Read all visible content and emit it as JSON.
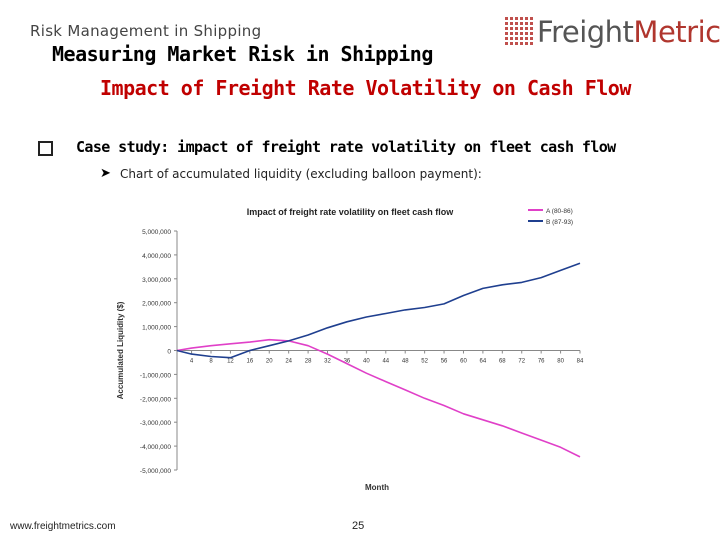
{
  "header": {
    "subtitle": "Risk Management in Shipping",
    "title": "Measuring Market Risk in Shipping",
    "subtitle2": "Impact of Freight Rate Volatility on Cash Flow"
  },
  "logo": {
    "part1": "Freight",
    "part2": "Metrics"
  },
  "case_study": {
    "bullet_text": "Case study: impact of freight rate volatility on fleet cash flow",
    "sub_bullet": "Chart of accumulated liquidity (excluding balloon payment):"
  },
  "icons": {
    "bullet": "square-bullet-icon",
    "arrow": "arrow-bullet-icon"
  },
  "footer": {
    "url": "www.freightmetrics.com",
    "page": "25"
  },
  "chart_data": {
    "type": "line",
    "title": "Impact of freight rate volatility on fleet cash flow",
    "xlabel": "Month",
    "ylabel": "Accumulated Liquidity ($)",
    "ylim": [
      -5000000,
      5000000
    ],
    "yticks": [
      5000000,
      4000000,
      3000000,
      2000000,
      1000000,
      0,
      -1000000,
      -2000000,
      -3000000,
      -4000000,
      -5000000
    ],
    "ytick_labels": [
      "5,000,000",
      "4,000,000",
      "3,000,000",
      "2,000,000",
      "1,000,000",
      "0",
      "-1,000,000",
      "-2,000,000",
      "-3,000,000",
      "-4,000,000",
      "-5,000,000"
    ],
    "x_ticks": [
      "4",
      "8",
      "12",
      "16",
      "20",
      "24",
      "28",
      "32",
      "36",
      "40",
      "44",
      "48",
      "52",
      "56",
      "60",
      "64",
      "68",
      "72",
      "76",
      "80",
      "84"
    ],
    "x_range": [
      1,
      84
    ],
    "grid": false,
    "legend": "top-right",
    "colors": {
      "A": "#e040c8",
      "B": "#1f3f8f"
    },
    "series": [
      {
        "name": "A (80-86)",
        "color": "#e040c8",
        "x": [
          1,
          4,
          8,
          12,
          16,
          20,
          24,
          28,
          32,
          36,
          40,
          44,
          48,
          52,
          56,
          60,
          64,
          68,
          72,
          76,
          80,
          84
        ],
        "values": [
          0,
          100000,
          200000,
          280000,
          350000,
          450000,
          400000,
          200000,
          -150000,
          -550000,
          -950000,
          -1300000,
          -1650000,
          -2000000,
          -2300000,
          -2650000,
          -2900000,
          -3150000,
          -3450000,
          -3750000,
          -4050000,
          -4450000
        ]
      },
      {
        "name": "B (87-93)",
        "color": "#1f3f8f",
        "x": [
          1,
          4,
          8,
          12,
          16,
          20,
          24,
          28,
          32,
          36,
          40,
          44,
          48,
          52,
          56,
          60,
          64,
          68,
          72,
          76,
          80,
          84
        ],
        "values": [
          0,
          -150000,
          -250000,
          -300000,
          0,
          200000,
          400000,
          650000,
          950000,
          1200000,
          1400000,
          1550000,
          1700000,
          1800000,
          1950000,
          2300000,
          2600000,
          2750000,
          2850000,
          3050000,
          3350000,
          3650000
        ]
      }
    ]
  }
}
